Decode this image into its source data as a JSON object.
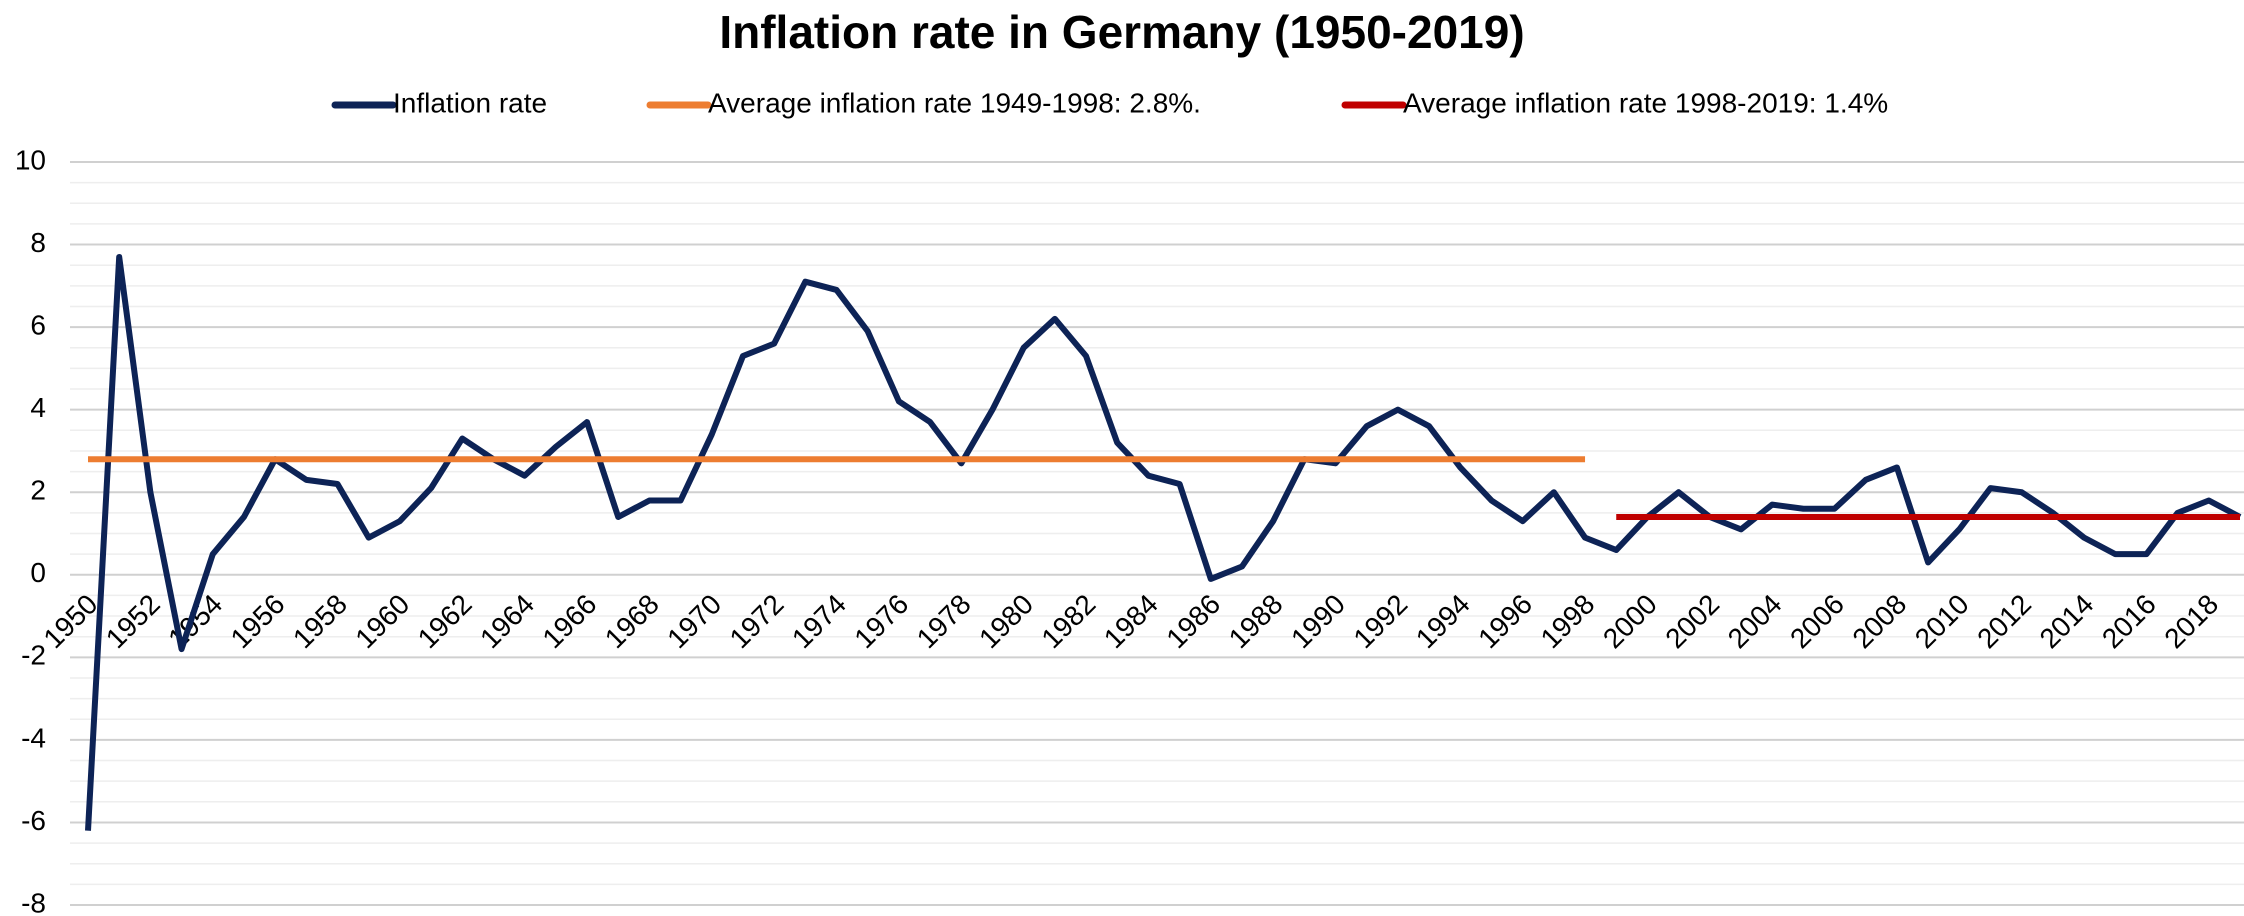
{
  "chart_data": {
    "type": "line",
    "title": "Inflation rate in Germany (1950-2019)",
    "x": [
      1950,
      1951,
      1952,
      1953,
      1954,
      1955,
      1956,
      1957,
      1958,
      1959,
      1960,
      1961,
      1962,
      1963,
      1964,
      1965,
      1966,
      1967,
      1968,
      1969,
      1970,
      1971,
      1972,
      1973,
      1974,
      1975,
      1976,
      1977,
      1978,
      1979,
      1980,
      1981,
      1982,
      1983,
      1984,
      1985,
      1986,
      1987,
      1988,
      1989,
      1990,
      1991,
      1992,
      1993,
      1994,
      1995,
      1996,
      1997,
      1998,
      1999,
      2000,
      2001,
      2002,
      2003,
      2004,
      2005,
      2006,
      2007,
      2008,
      2009,
      2010,
      2011,
      2012,
      2013,
      2014,
      2015,
      2016,
      2017,
      2018,
      2019
    ],
    "series": [
      {
        "name": "Inflation rate",
        "color": "#0d2356",
        "values": [
          -6.2,
          7.7,
          2.0,
          -1.8,
          0.5,
          1.4,
          2.8,
          2.3,
          2.2,
          0.9,
          1.3,
          2.1,
          3.3,
          2.8,
          2.4,
          3.1,
          3.7,
          1.4,
          1.8,
          1.8,
          3.4,
          5.3,
          5.6,
          7.1,
          6.9,
          5.9,
          4.2,
          3.7,
          2.7,
          4.0,
          5.5,
          6.2,
          5.3,
          3.2,
          2.4,
          2.2,
          -0.1,
          0.2,
          1.3,
          2.8,
          2.7,
          3.6,
          4.0,
          3.6,
          2.6,
          1.8,
          1.3,
          2.0,
          0.9,
          0.6,
          1.4,
          2.0,
          1.4,
          1.1,
          1.7,
          1.6,
          1.6,
          2.3,
          2.6,
          0.3,
          1.1,
          2.1,
          2.0,
          1.5,
          0.9,
          0.5,
          0.5,
          1.5,
          1.8,
          1.4
        ]
      },
      {
        "name": "Average inflation rate 1949-1998: 2.8%.",
        "color": "#ed7d31",
        "values": [
          2.8,
          2.8,
          2.8,
          2.8,
          2.8,
          2.8,
          2.8,
          2.8,
          2.8,
          2.8,
          2.8,
          2.8,
          2.8,
          2.8,
          2.8,
          2.8,
          2.8,
          2.8,
          2.8,
          2.8,
          2.8,
          2.8,
          2.8,
          2.8,
          2.8,
          2.8,
          2.8,
          2.8,
          2.8,
          2.8,
          2.8,
          2.8,
          2.8,
          2.8,
          2.8,
          2.8,
          2.8,
          2.8,
          2.8,
          2.8,
          2.8,
          2.8,
          2.8,
          2.8,
          2.8,
          2.8,
          2.8,
          2.8,
          2.8,
          null,
          null,
          null,
          null,
          null,
          null,
          null,
          null,
          null,
          null,
          null,
          null,
          null,
          null,
          null,
          null,
          null,
          null,
          null,
          null,
          null
        ]
      },
      {
        "name": "Average inflation rate 1998-2019: 1.4%",
        "color": "#c00000",
        "values": [
          null,
          null,
          null,
          null,
          null,
          null,
          null,
          null,
          null,
          null,
          null,
          null,
          null,
          null,
          null,
          null,
          null,
          null,
          null,
          null,
          null,
          null,
          null,
          null,
          null,
          null,
          null,
          null,
          null,
          null,
          null,
          null,
          null,
          null,
          null,
          null,
          null,
          null,
          null,
          null,
          null,
          null,
          null,
          null,
          null,
          null,
          null,
          null,
          null,
          1.4,
          1.4,
          1.4,
          1.4,
          1.4,
          1.4,
          1.4,
          1.4,
          1.4,
          1.4,
          1.4,
          1.4,
          1.4,
          1.4,
          1.4,
          1.4,
          1.4,
          1.4,
          1.4,
          1.4,
          1.4
        ]
      }
    ],
    "xlim": [
      1950,
      2019
    ],
    "xticks": [
      1950,
      1952,
      1954,
      1956,
      1958,
      1960,
      1962,
      1964,
      1966,
      1968,
      1970,
      1972,
      1974,
      1976,
      1978,
      1980,
      1982,
      1984,
      1986,
      1988,
      1990,
      1992,
      1994,
      1996,
      1998,
      2000,
      2002,
      2004,
      2006,
      2008,
      2010,
      2012,
      2014,
      2016,
      2018
    ],
    "ylim": [
      -8,
      10
    ],
    "yticks": [
      -8,
      -6,
      -4,
      -2,
      0,
      2,
      4,
      6,
      8,
      10
    ],
    "grid": true,
    "minor_grid": true,
    "legend": "top"
  }
}
